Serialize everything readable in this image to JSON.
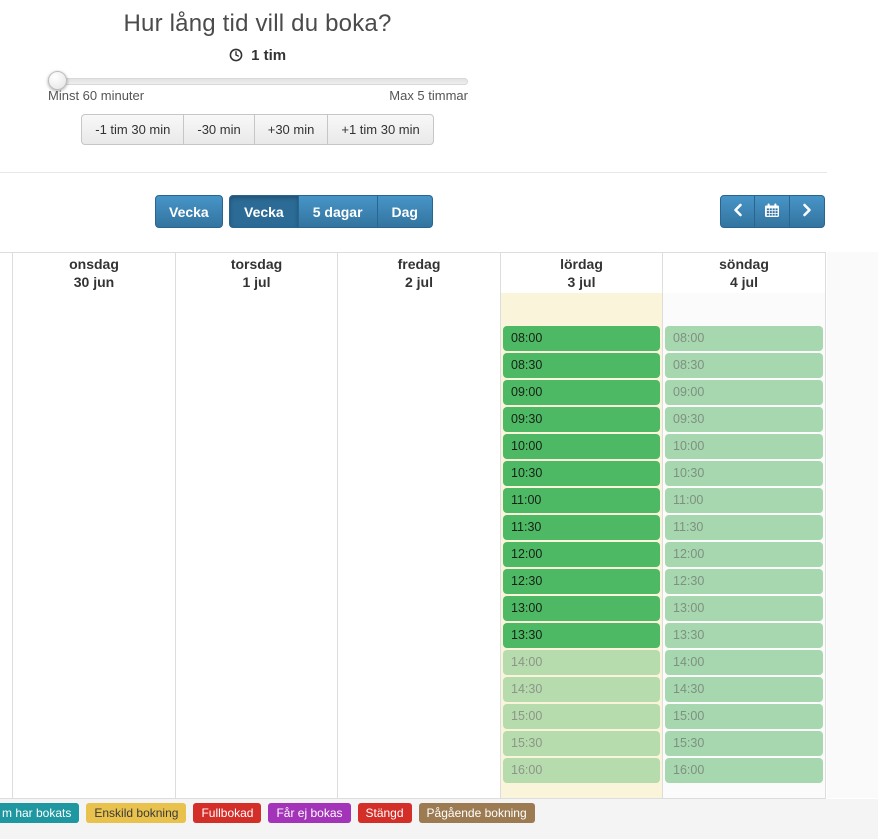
{
  "duration_panel": {
    "title": "Hur lång tid vill du boka?",
    "duration_value": "1 tim",
    "min_label": "Minst 60 minuter",
    "max_label": "Max 5 timmar",
    "adjust_buttons": [
      "-1 tim 30 min",
      "-30 min",
      "+30 min",
      "+1 tim 30 min"
    ]
  },
  "toolbar": {
    "week_button": "Vecka",
    "view_buttons": [
      {
        "label": "Vecka",
        "active": true
      },
      {
        "label": "5 dagar",
        "active": false
      },
      {
        "label": "Dag",
        "active": false
      }
    ]
  },
  "calendar": {
    "days": [
      {
        "name": "",
        "date": "",
        "key": "partial",
        "highlighted": false,
        "slots": []
      },
      {
        "name": "onsdag",
        "date": "30 jun",
        "key": "wednesday",
        "highlighted": false,
        "slots": []
      },
      {
        "name": "torsdag",
        "date": "1 jul",
        "key": "thursday",
        "highlighted": false,
        "slots": []
      },
      {
        "name": "fredag",
        "date": "2 jul",
        "key": "friday",
        "highlighted": false,
        "slots": []
      },
      {
        "name": "lördag",
        "date": "3 jul",
        "key": "saturday",
        "highlighted": true,
        "slots": [
          {
            "time": "08:00",
            "state": "strong"
          },
          {
            "time": "08:30",
            "state": "strong"
          },
          {
            "time": "09:00",
            "state": "strong"
          },
          {
            "time": "09:30",
            "state": "strong"
          },
          {
            "time": "10:00",
            "state": "strong"
          },
          {
            "time": "10:30",
            "state": "strong"
          },
          {
            "time": "11:00",
            "state": "strong"
          },
          {
            "time": "11:30",
            "state": "strong"
          },
          {
            "time": "12:00",
            "state": "strong"
          },
          {
            "time": "12:30",
            "state": "strong"
          },
          {
            "time": "13:00",
            "state": "strong"
          },
          {
            "time": "13:30",
            "state": "strong"
          },
          {
            "time": "14:00",
            "state": "muted"
          },
          {
            "time": "14:30",
            "state": "muted"
          },
          {
            "time": "15:00",
            "state": "muted"
          },
          {
            "time": "15:30",
            "state": "muted"
          },
          {
            "time": "16:00",
            "state": "muted"
          }
        ]
      },
      {
        "name": "söndag",
        "date": "4 jul",
        "key": "sunday",
        "highlighted": false,
        "slots": [
          {
            "time": "08:00",
            "state": "muted"
          },
          {
            "time": "08:30",
            "state": "muted"
          },
          {
            "time": "09:00",
            "state": "muted"
          },
          {
            "time": "09:30",
            "state": "muted"
          },
          {
            "time": "10:00",
            "state": "muted"
          },
          {
            "time": "10:30",
            "state": "muted"
          },
          {
            "time": "11:00",
            "state": "muted"
          },
          {
            "time": "11:30",
            "state": "muted"
          },
          {
            "time": "12:00",
            "state": "muted"
          },
          {
            "time": "12:30",
            "state": "muted"
          },
          {
            "time": "13:00",
            "state": "muted"
          },
          {
            "time": "13:30",
            "state": "muted"
          },
          {
            "time": "14:00",
            "state": "muted"
          },
          {
            "time": "14:30",
            "state": "muted"
          },
          {
            "time": "15:00",
            "state": "muted"
          },
          {
            "time": "15:30",
            "state": "muted"
          },
          {
            "time": "16:00",
            "state": "muted"
          }
        ]
      }
    ]
  },
  "legend": [
    {
      "label": "m har bokats",
      "bg": "#1e97a1",
      "fg": "#ffffff"
    },
    {
      "label": "Enskild bokning",
      "bg": "#e9c24e",
      "fg": "#3a3a3a"
    },
    {
      "label": "Fullbokad",
      "bg": "#d42e29",
      "fg": "#ffffff"
    },
    {
      "label": "Får ej bokas",
      "bg": "#a333b8",
      "fg": "#ffffff"
    },
    {
      "label": "Stängd",
      "bg": "#d42e29",
      "fg": "#ffffff"
    },
    {
      "label": "Pågående bokning",
      "bg": "#9d7b52",
      "fg": "#ffffff"
    }
  ],
  "colors": {
    "blue_top": "#4795c8",
    "blue_bottom": "#33749f",
    "blue_active": "#2b6b96",
    "blue_border": "#2a6491",
    "slot_strong_bg": "#4eb964",
    "slot_strong_text": "#172117",
    "slot_muted_sat_bg": "#b6dcad",
    "slot_muted_sat_text": "#8d9589",
    "slot_muted_sun_bg": "#a6d7ae",
    "slot_muted_sun_text": "#7f9083",
    "saturday_bg": "#faf4da",
    "sunday_bg": "#fbfbfb"
  }
}
